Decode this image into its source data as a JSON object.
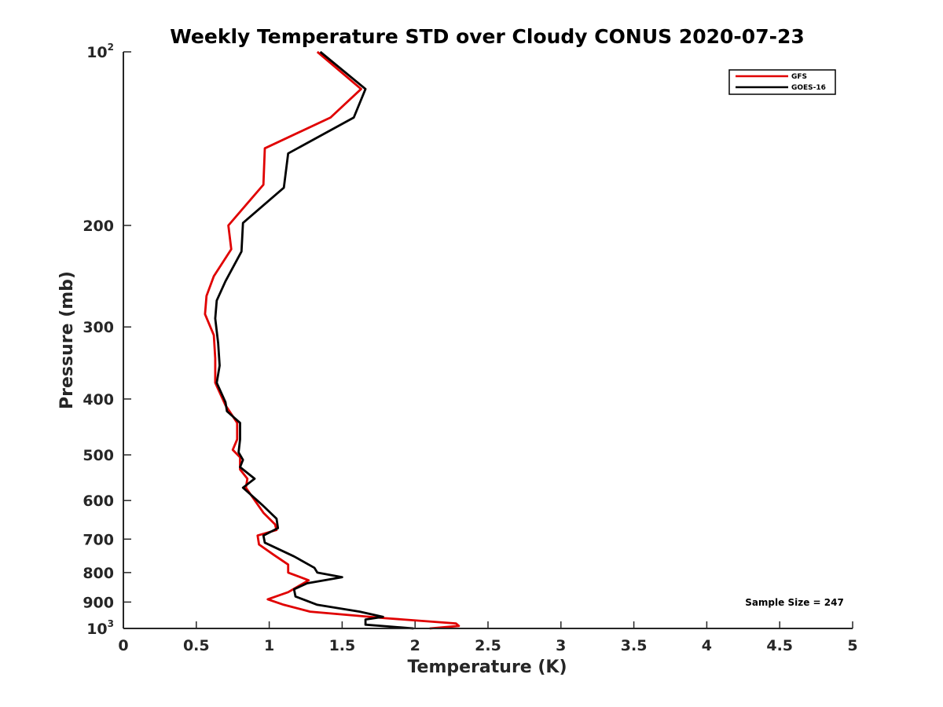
{
  "chart_data": {
    "type": "line",
    "title": "Weekly Temperature STD over Cloudy CONUS 2020-07-23",
    "xlabel": "Temperature (K)",
    "ylabel": "Pressure (mb)",
    "xlim": [
      0,
      5
    ],
    "ylim": [
      100,
      1000
    ],
    "y_scale": "log",
    "y_reversed": true,
    "grid": false,
    "legend_position": "top-right",
    "x_ticks": [
      {
        "value": 0,
        "label": "0"
      },
      {
        "value": 0.5,
        "label": "0.5"
      },
      {
        "value": 1,
        "label": "1"
      },
      {
        "value": 1.5,
        "label": "1.5"
      },
      {
        "value": 2,
        "label": "2"
      },
      {
        "value": 2.5,
        "label": "2.5"
      },
      {
        "value": 3,
        "label": "3"
      },
      {
        "value": 3.5,
        "label": "3.5"
      },
      {
        "value": 4,
        "label": "4"
      },
      {
        "value": 4.5,
        "label": "4.5"
      },
      {
        "value": 5,
        "label": "5"
      }
    ],
    "y_ticks": [
      {
        "value": 100,
        "label": "10",
        "exp": "2"
      },
      {
        "value": 200,
        "label": "200"
      },
      {
        "value": 300,
        "label": "300"
      },
      {
        "value": 400,
        "label": "400"
      },
      {
        "value": 500,
        "label": "500"
      },
      {
        "value": 600,
        "label": "600"
      },
      {
        "value": 700,
        "label": "700"
      },
      {
        "value": 800,
        "label": "800"
      },
      {
        "value": 900,
        "label": "900"
      },
      {
        "value": 1000,
        "label": "10",
        "exp": "3"
      }
    ],
    "series": [
      {
        "name": "GFS",
        "color": "#e00000",
        "points": [
          [
            1.33,
            100
          ],
          [
            1.63,
            116
          ],
          [
            1.42,
            130
          ],
          [
            0.97,
            147
          ],
          [
            0.96,
            170
          ],
          [
            0.72,
            200
          ],
          [
            0.74,
            220
          ],
          [
            0.62,
            245
          ],
          [
            0.57,
            265
          ],
          [
            0.56,
            285
          ],
          [
            0.62,
            310
          ],
          [
            0.63,
            340
          ],
          [
            0.63,
            375
          ],
          [
            0.7,
            410
          ],
          [
            0.78,
            440
          ],
          [
            0.78,
            470
          ],
          [
            0.75,
            490
          ],
          [
            0.8,
            505
          ],
          [
            0.8,
            530
          ],
          [
            0.85,
            550
          ],
          [
            0.84,
            570
          ],
          [
            0.96,
            630
          ],
          [
            1.04,
            660
          ],
          [
            1.05,
            675
          ],
          [
            0.92,
            690
          ],
          [
            0.93,
            715
          ],
          [
            1.03,
            745
          ],
          [
            1.13,
            775
          ],
          [
            1.13,
            800
          ],
          [
            1.27,
            825
          ],
          [
            1.13,
            865
          ],
          [
            0.99,
            890
          ],
          [
            1.1,
            910
          ],
          [
            1.28,
            935
          ],
          [
            1.8,
            960
          ],
          [
            2.28,
            980
          ],
          [
            2.3,
            990
          ],
          [
            2.1,
            1000
          ]
        ]
      },
      {
        "name": "GOES-16",
        "color": "#000000",
        "points": [
          [
            1.35,
            100
          ],
          [
            1.66,
            116
          ],
          [
            1.58,
            130
          ],
          [
            1.13,
            150
          ],
          [
            1.1,
            172
          ],
          [
            0.82,
            198
          ],
          [
            0.81,
            222
          ],
          [
            0.7,
            250
          ],
          [
            0.64,
            270
          ],
          [
            0.63,
            290
          ],
          [
            0.65,
            320
          ],
          [
            0.66,
            350
          ],
          [
            0.64,
            375
          ],
          [
            0.7,
            405
          ],
          [
            0.71,
            420
          ],
          [
            0.8,
            440
          ],
          [
            0.8,
            470
          ],
          [
            0.79,
            495
          ],
          [
            0.82,
            510
          ],
          [
            0.8,
            525
          ],
          [
            0.9,
            550
          ],
          [
            0.82,
            570
          ],
          [
            0.95,
            610
          ],
          [
            1.05,
            645
          ],
          [
            1.06,
            670
          ],
          [
            0.96,
            690
          ],
          [
            0.97,
            710
          ],
          [
            1.17,
            750
          ],
          [
            1.31,
            785
          ],
          [
            1.33,
            800
          ],
          [
            1.5,
            815
          ],
          [
            1.26,
            835
          ],
          [
            1.17,
            855
          ],
          [
            1.18,
            880
          ],
          [
            1.33,
            910
          ],
          [
            1.62,
            935
          ],
          [
            1.78,
            955
          ],
          [
            1.66,
            965
          ],
          [
            1.66,
            975
          ],
          [
            1.66,
            985
          ],
          [
            1.99,
            1000
          ]
        ]
      }
    ],
    "annotation": "Sample Size = 247"
  }
}
